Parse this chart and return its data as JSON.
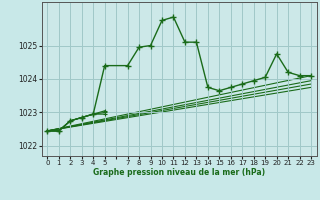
{
  "title": "Graphe pression niveau de la mer (hPa)",
  "bg_color": "#c8e8e8",
  "plot_bg_color": "#cce8e8",
  "grid_color": "#a0c8c8",
  "line_color": "#1a6b1a",
  "xlim": [
    -0.5,
    23.5
  ],
  "ylim": [
    1021.7,
    1026.3
  ],
  "yticks": [
    1022,
    1023,
    1024,
    1025
  ],
  "main_series": {
    "x": [
      0,
      1,
      2,
      3,
      4,
      5,
      7,
      8,
      9,
      10,
      11,
      12,
      13,
      14,
      15,
      16,
      17,
      18,
      19,
      20,
      21,
      22,
      23
    ],
    "y": [
      1022.45,
      1022.45,
      1022.75,
      1022.85,
      1022.95,
      1024.4,
      1024.4,
      1024.95,
      1025.0,
      1025.75,
      1025.85,
      1025.1,
      1025.1,
      1023.75,
      1023.65,
      1023.75,
      1023.85,
      1023.95,
      1024.05,
      1024.75,
      1024.2,
      1024.1,
      1024.1
    ]
  },
  "forecast_lines": [
    {
      "x": [
        0,
        23
      ],
      "y": [
        1022.45,
        1024.1
      ]
    },
    {
      "x": [
        0,
        23
      ],
      "y": [
        1022.45,
        1023.95
      ]
    },
    {
      "x": [
        0,
        23
      ],
      "y": [
        1022.45,
        1023.85
      ]
    },
    {
      "x": [
        0,
        23
      ],
      "y": [
        1022.45,
        1023.75
      ]
    }
  ],
  "short_series": [
    {
      "x": [
        0,
        1,
        2,
        3,
        4,
        5
      ],
      "y": [
        1022.45,
        1022.45,
        1022.75,
        1022.85,
        1022.95,
        1023.05
      ]
    },
    {
      "x": [
        0,
        1,
        2,
        3,
        4,
        5
      ],
      "y": [
        1022.45,
        1022.45,
        1022.75,
        1022.85,
        1022.95,
        1023.0
      ]
    },
    {
      "x": [
        0,
        1,
        2,
        3,
        4,
        5
      ],
      "y": [
        1022.45,
        1022.45,
        1022.75,
        1022.85,
        1022.95,
        1022.95
      ]
    }
  ]
}
